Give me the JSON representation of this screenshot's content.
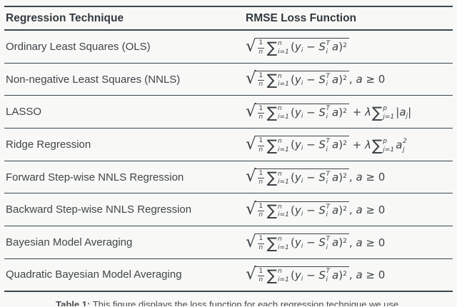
{
  "table": {
    "headers": [
      "Regression Technique",
      "RMSE Loss Function"
    ],
    "rows": [
      {
        "technique": "Ordinary Least Squares (OLS)",
        "tail": "none"
      },
      {
        "technique": "Non-negative Least Squares (NNLS)",
        "tail": "geq"
      },
      {
        "technique": "LASSO",
        "tail": "lasso"
      },
      {
        "technique": "Ridge Regression",
        "tail": "ridge"
      },
      {
        "technique": "Forward Step-wise NNLS Regression",
        "tail": "geq"
      },
      {
        "technique": "Backward Step-wise NNLS Regression",
        "tail": "geq"
      },
      {
        "technique": "Bayesian Model Averaging",
        "tail": "geq"
      },
      {
        "technique": "Quadratic Bayesian Model Averaging",
        "tail": "geq"
      }
    ],
    "formula": {
      "radical_sign": "√",
      "sigma_sign": "∑",
      "radicand": [
        {
          "t": "frac",
          "n": "1",
          "d": "n"
        },
        {
          "t": "sum",
          "top": "n",
          "bot": "i=1"
        },
        {
          "t": "r",
          "x": "("
        },
        {
          "t": "v",
          "x": "y"
        },
        {
          "t": "sub",
          "x": "i"
        },
        {
          "t": "r",
          "x": " − "
        },
        {
          "t": "v",
          "x": "S"
        },
        {
          "t": "ss",
          "sup": "T",
          "sub": "i"
        },
        {
          "t": "g"
        },
        {
          "t": "v",
          "x": "a"
        },
        {
          "t": "r",
          "x": ")"
        },
        {
          "t": "sup",
          "x": "2"
        }
      ],
      "tails": {
        "none": [],
        "geq": [
          {
            "t": "r",
            "x": ", "
          },
          {
            "t": "v",
            "x": "a"
          },
          {
            "t": "r",
            "x": " ≥ 0"
          }
        ],
        "lasso": [
          {
            "t": "r",
            "x": " + "
          },
          {
            "t": "v",
            "x": "λ"
          },
          {
            "t": "sum",
            "top": "p",
            "bot": "j=1"
          },
          {
            "t": "r",
            "x": "|"
          },
          {
            "t": "v",
            "x": "a"
          },
          {
            "t": "sub",
            "x": "j"
          },
          {
            "t": "r",
            "x": "|"
          }
        ],
        "ridge": [
          {
            "t": "r",
            "x": " + "
          },
          {
            "t": "v",
            "x": "λ"
          },
          {
            "t": "sum",
            "top": "p",
            "bot": "j=1"
          },
          {
            "t": "v",
            "x": "a"
          },
          {
            "t": "ss",
            "sup": "2",
            "sub": "j"
          }
        ]
      }
    }
  },
  "caption": {
    "label": "Table 1:",
    "text": "This figure displays the loss function for each regression technique we use."
  },
  "colors": {
    "background": "#f8f8f6",
    "rule": "#37474f",
    "ink": "#3e4549"
  }
}
